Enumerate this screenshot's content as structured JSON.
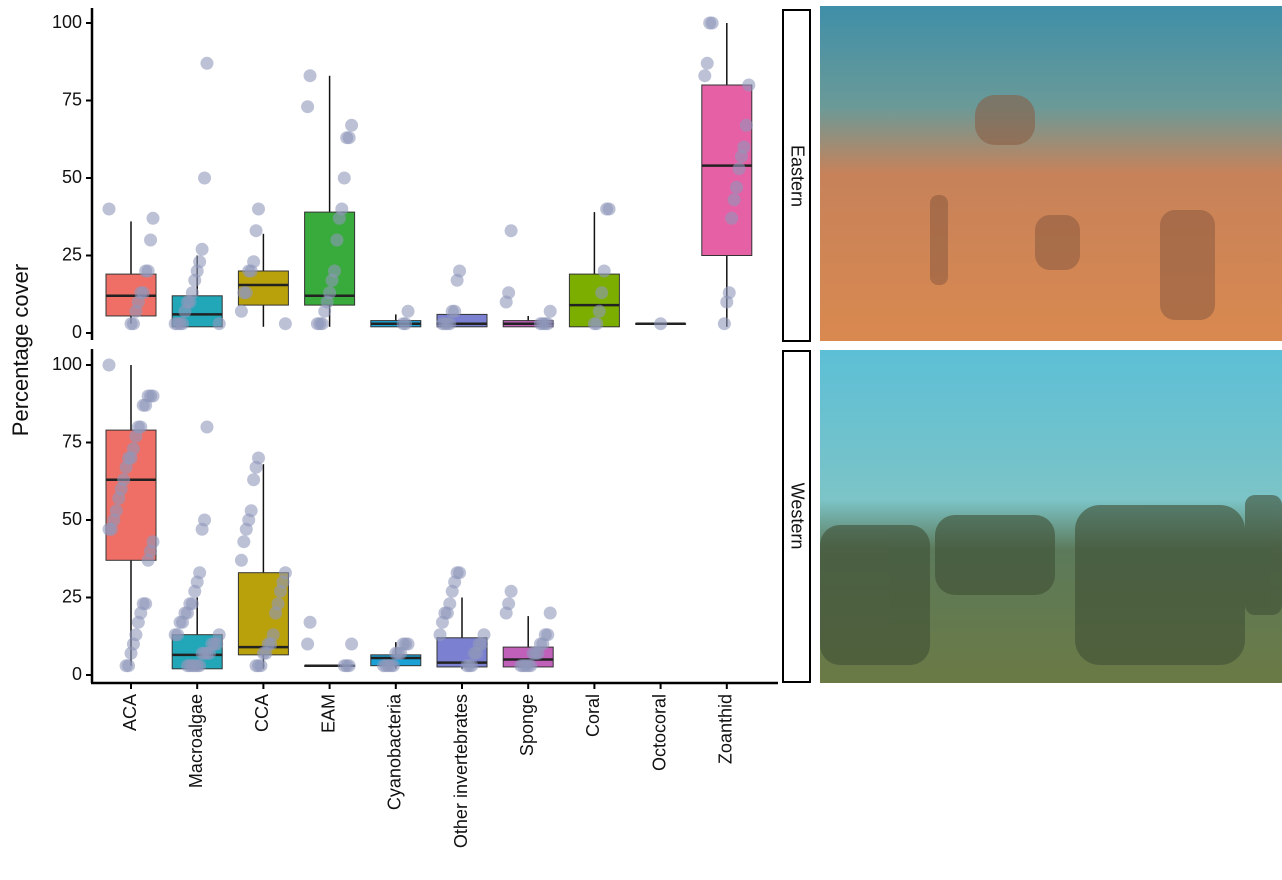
{
  "chart_data": {
    "type": "box",
    "ylabel": "Percentage cover",
    "categories": [
      "ACA",
      "Macroalgae",
      "CCA",
      "EAM",
      "Cyanobacteria",
      "Other invertebrates",
      "Sponge",
      "Coral",
      "Octocoral",
      "Zoanthid"
    ],
    "colors": [
      "#ef6f66",
      "#22a7b9",
      "#b9a10c",
      "#39ab3c",
      "#1aa1d6",
      "#7b80d1",
      "#c060b8",
      "#7cae00",
      "#9a9a9a",
      "#e660a6"
    ],
    "point_color": "#8f98bb",
    "ylim": [
      0,
      100
    ],
    "yticks": [
      0,
      25,
      50,
      75,
      100
    ],
    "facets": [
      {
        "label": "Eastern",
        "boxes": [
          {
            "min": 3,
            "q1": 5.5,
            "median": 12,
            "q3": 19,
            "max": 36
          },
          {
            "min": 2,
            "q1": 2,
            "median": 6,
            "q3": 12,
            "max": 25
          },
          {
            "min": 2,
            "q1": 9,
            "median": 15.5,
            "q3": 20,
            "max": 32
          },
          {
            "min": 2,
            "q1": 9,
            "median": 12,
            "q3": 39,
            "max": 83
          },
          {
            "min": 2,
            "q1": 2,
            "median": 3,
            "q3": 4,
            "max": 6
          },
          {
            "min": 2,
            "q1": 2,
            "median": 3,
            "q3": 6,
            "max": 6
          },
          {
            "min": 2,
            "q1": 2,
            "median": 3,
            "q3": 4,
            "max": 5.5
          },
          {
            "min": 2,
            "q1": 2,
            "median": 9,
            "q3": 19,
            "max": 39
          },
          {
            "min": 3,
            "q1": 3,
            "median": 3,
            "q3": 3,
            "max": 3
          },
          {
            "min": 2,
            "q1": 25,
            "median": 54,
            "q3": 80,
            "max": 100
          }
        ],
        "points": [
          [
            40,
            37,
            30,
            20,
            20,
            13,
            13,
            10,
            7,
            3,
            3
          ],
          [
            87,
            50,
            27,
            23,
            20,
            17,
            13,
            10,
            10,
            7,
            3,
            3,
            3,
            3,
            3
          ],
          [
            40,
            33,
            23,
            20,
            20,
            13,
            13,
            7,
            3
          ],
          [
            83,
            73,
            67,
            63,
            63,
            50,
            40,
            37,
            30,
            20,
            17,
            13,
            10,
            7,
            3,
            3,
            3
          ],
          [
            7,
            3,
            3
          ],
          [
            20,
            17,
            7,
            7,
            3,
            3,
            3,
            3
          ],
          [
            33,
            13,
            10,
            7,
            3,
            3,
            3,
            3
          ],
          [
            40,
            40,
            20,
            13,
            7,
            3,
            3
          ],
          [
            3
          ],
          [
            100,
            100,
            87,
            83,
            80,
            67,
            60,
            57,
            53,
            47,
            43,
            37,
            13,
            10,
            3
          ]
        ]
      },
      {
        "label": "Western",
        "boxes": [
          {
            "min": 3,
            "q1": 37,
            "median": 63,
            "q3": 79,
            "max": 100
          },
          {
            "min": 2,
            "q1": 2,
            "median": 6.5,
            "q3": 13,
            "max": 25
          },
          {
            "min": 2,
            "q1": 6.5,
            "median": 9,
            "q3": 33,
            "max": 68
          },
          {
            "min": 3,
            "q1": 3,
            "median": 3,
            "q3": 3,
            "max": 3
          },
          {
            "min": 2,
            "q1": 3,
            "median": 5.5,
            "q3": 6.5,
            "max": 10.6
          },
          {
            "min": 2,
            "q1": 2.6,
            "median": 4,
            "q3": 12,
            "max": 25
          },
          {
            "min": 2,
            "q1": 2.6,
            "median": 5,
            "q3": 9,
            "max": 19
          },
          null,
          null,
          null
        ],
        "points": [
          [
            100,
            90,
            90,
            90,
            87,
            87,
            80,
            80,
            77,
            73,
            70,
            70,
            67,
            63,
            60,
            57,
            53,
            50,
            47,
            47,
            43,
            40,
            37,
            23,
            23,
            20,
            17,
            13,
            10,
            7,
            3,
            3
          ],
          [
            80,
            50,
            47,
            33,
            30,
            27,
            23,
            23,
            20,
            20,
            17,
            17,
            13,
            13,
            13,
            10,
            10,
            10,
            7,
            7,
            7,
            7,
            3,
            3,
            3,
            3,
            3,
            3
          ],
          [
            70,
            67,
            63,
            53,
            50,
            47,
            43,
            37,
            33,
            30,
            27,
            23,
            20,
            13,
            10,
            10,
            7,
            7,
            3,
            3,
            3
          ],
          [
            17,
            10,
            10,
            3,
            3,
            3
          ],
          [
            10,
            10,
            10,
            7,
            7,
            7,
            3,
            3,
            3,
            3,
            3
          ],
          [
            33,
            33,
            30,
            27,
            23,
            20,
            20,
            17,
            13,
            13,
            10,
            10,
            7,
            7,
            3,
            3,
            3
          ],
          [
            27,
            23,
            20,
            20,
            13,
            13,
            10,
            10,
            7,
            7,
            7,
            3,
            3,
            3,
            3,
            3
          ],
          [],
          [],
          []
        ]
      }
    ]
  }
}
